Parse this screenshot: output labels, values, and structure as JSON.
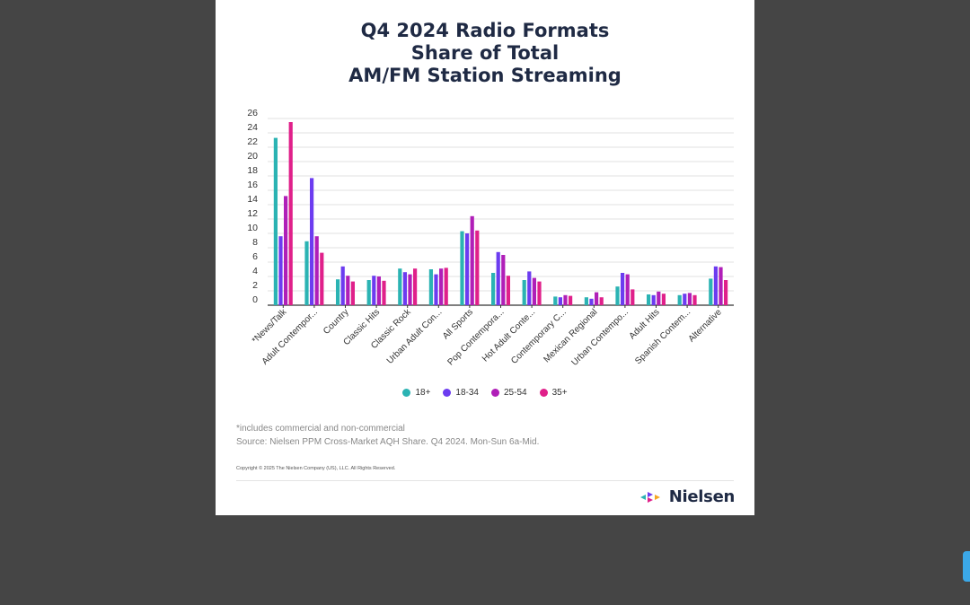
{
  "chart_data": {
    "type": "bar",
    "title": [
      "Q4 2024 Radio Formats",
      "Share of Total",
      "AM/FM Station Streaming"
    ],
    "categories": [
      "*News/Talk",
      "Adult Contempor...",
      "Country",
      "Classic Hits",
      "Classic Rock",
      "Urban Adult Con...",
      "All Sports",
      "Pop Contempora...",
      "Hot Adult Conte...",
      "Contemporary C...",
      "Mexican Regional",
      "Urban Contempo...",
      "Adult Hits",
      "Spanish Contem...",
      "Alternative"
    ],
    "series": [
      {
        "name": "18+",
        "color": "#2bb3b3",
        "values": [
          23.3,
          8.9,
          3.6,
          3.5,
          5.1,
          5.0,
          10.3,
          4.5,
          3.5,
          1.2,
          1.1,
          2.6,
          1.5,
          1.4,
          3.7
        ]
      },
      {
        "name": "18-34",
        "color": "#6c3cf0",
        "values": [
          9.6,
          17.7,
          5.4,
          4.1,
          4.6,
          4.3,
          10.0,
          7.4,
          4.7,
          1.1,
          0.9,
          4.5,
          1.4,
          1.6,
          5.4
        ]
      },
      {
        "name": "25-54",
        "color": "#b01fb8",
        "values": [
          15.2,
          9.6,
          4.1,
          4.0,
          4.3,
          5.1,
          12.4,
          7.0,
          3.8,
          1.4,
          1.8,
          4.3,
          1.9,
          1.7,
          5.3
        ]
      },
      {
        "name": "35+",
        "color": "#e0208a",
        "values": [
          25.5,
          7.3,
          3.3,
          3.4,
          5.1,
          5.2,
          10.4,
          4.1,
          3.3,
          1.3,
          1.1,
          2.2,
          1.6,
          1.4,
          3.5
        ]
      }
    ],
    "yticks": [
      "26",
      "24",
      "22",
      "20",
      "18",
      "16",
      "14",
      "12",
      "10",
      "8",
      "6",
      "4",
      "2",
      "0"
    ],
    "ylim": [
      0,
      26
    ],
    "grid": true,
    "legend_position": "bottom"
  },
  "notes": {
    "footnote": "*includes commercial and non-commercial",
    "source": "Source: Nielsen PPM Cross-Market AQH Share. Q4 2024. Mon-Sun 6a-Mid.",
    "copyright": "Copyright © 2025 The Nielsen Company (US), LLC. All Rights Reserved."
  },
  "logo": {
    "text": "Nielsen",
    "colors": [
      "#2bb3b3",
      "#6c3cf0",
      "#e0208a",
      "#f5a623"
    ]
  }
}
